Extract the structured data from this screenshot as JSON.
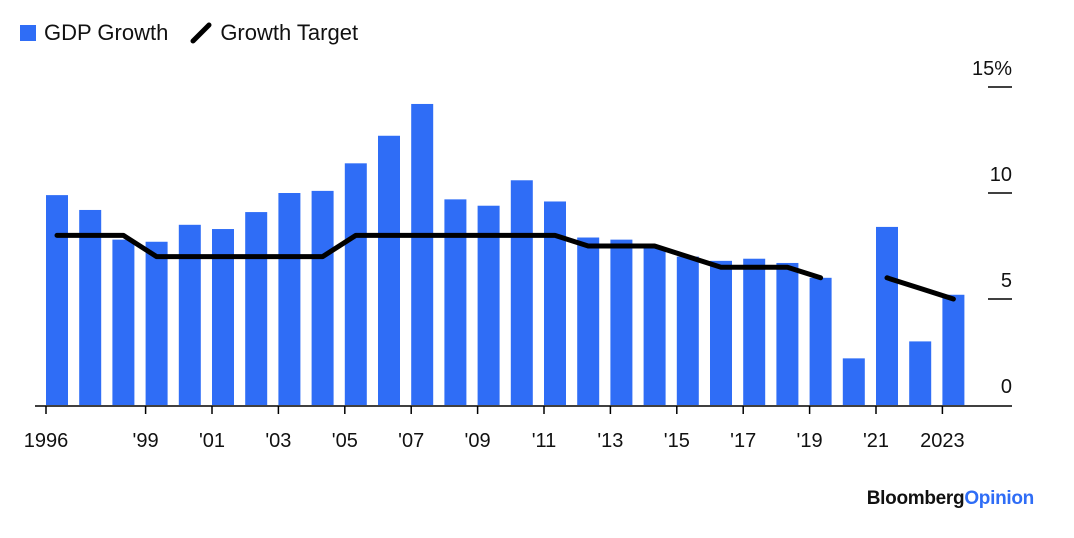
{
  "legend": {
    "gdp_label": "GDP Growth",
    "target_label": "Growth Target"
  },
  "brand": {
    "part1": "Bloomberg",
    "part2": "Opinion"
  },
  "colors": {
    "bar": "#2f6df6",
    "line": "#000000",
    "axis": "#000000"
  },
  "chart_data": {
    "type": "bar",
    "x": [
      1996,
      1997,
      1998,
      1999,
      2000,
      2001,
      2002,
      2003,
      2004,
      2005,
      2006,
      2007,
      2008,
      2009,
      2010,
      2011,
      2012,
      2013,
      2014,
      2015,
      2016,
      2017,
      2018,
      2019,
      2020,
      2021,
      2022,
      2023
    ],
    "x_tick_labels": [
      {
        "x": 1996,
        "label": "1996"
      },
      {
        "x": 1999,
        "label": "'99"
      },
      {
        "x": 2001,
        "label": "'01"
      },
      {
        "x": 2003,
        "label": "'03"
      },
      {
        "x": 2005,
        "label": "'05"
      },
      {
        "x": 2007,
        "label": "'07"
      },
      {
        "x": 2009,
        "label": "'09"
      },
      {
        "x": 2011,
        "label": "'11"
      },
      {
        "x": 2013,
        "label": "'13"
      },
      {
        "x": 2015,
        "label": "'15"
      },
      {
        "x": 2017,
        "label": "'17"
      },
      {
        "x": 2019,
        "label": "'19"
      },
      {
        "x": 2021,
        "label": "'21"
      },
      {
        "x": 2023,
        "label": "2023"
      }
    ],
    "y_ticks": [
      {
        "value": 15,
        "label": "15%"
      },
      {
        "value": 10,
        "label": "10"
      },
      {
        "value": 5,
        "label": "5"
      },
      {
        "value": 0,
        "label": "0"
      }
    ],
    "ylim": [
      0,
      15
    ],
    "series": [
      {
        "name": "GDP Growth",
        "type": "bar",
        "values": [
          9.9,
          9.2,
          7.8,
          7.7,
          8.5,
          8.3,
          9.1,
          10.0,
          10.1,
          11.4,
          12.7,
          14.2,
          9.7,
          9.4,
          10.6,
          9.6,
          7.9,
          7.8,
          7.4,
          7.0,
          6.8,
          6.9,
          6.7,
          6.0,
          2.2,
          8.4,
          3.0,
          5.2
        ]
      },
      {
        "name": "Growth Target",
        "type": "line",
        "values": [
          8,
          8,
          8,
          7,
          7,
          7,
          7,
          7,
          7,
          8,
          8,
          8,
          8,
          8,
          8,
          8,
          7.5,
          7.5,
          7.5,
          7,
          6.5,
          6.5,
          6.5,
          6,
          null,
          6,
          5.5,
          5
        ]
      }
    ]
  }
}
